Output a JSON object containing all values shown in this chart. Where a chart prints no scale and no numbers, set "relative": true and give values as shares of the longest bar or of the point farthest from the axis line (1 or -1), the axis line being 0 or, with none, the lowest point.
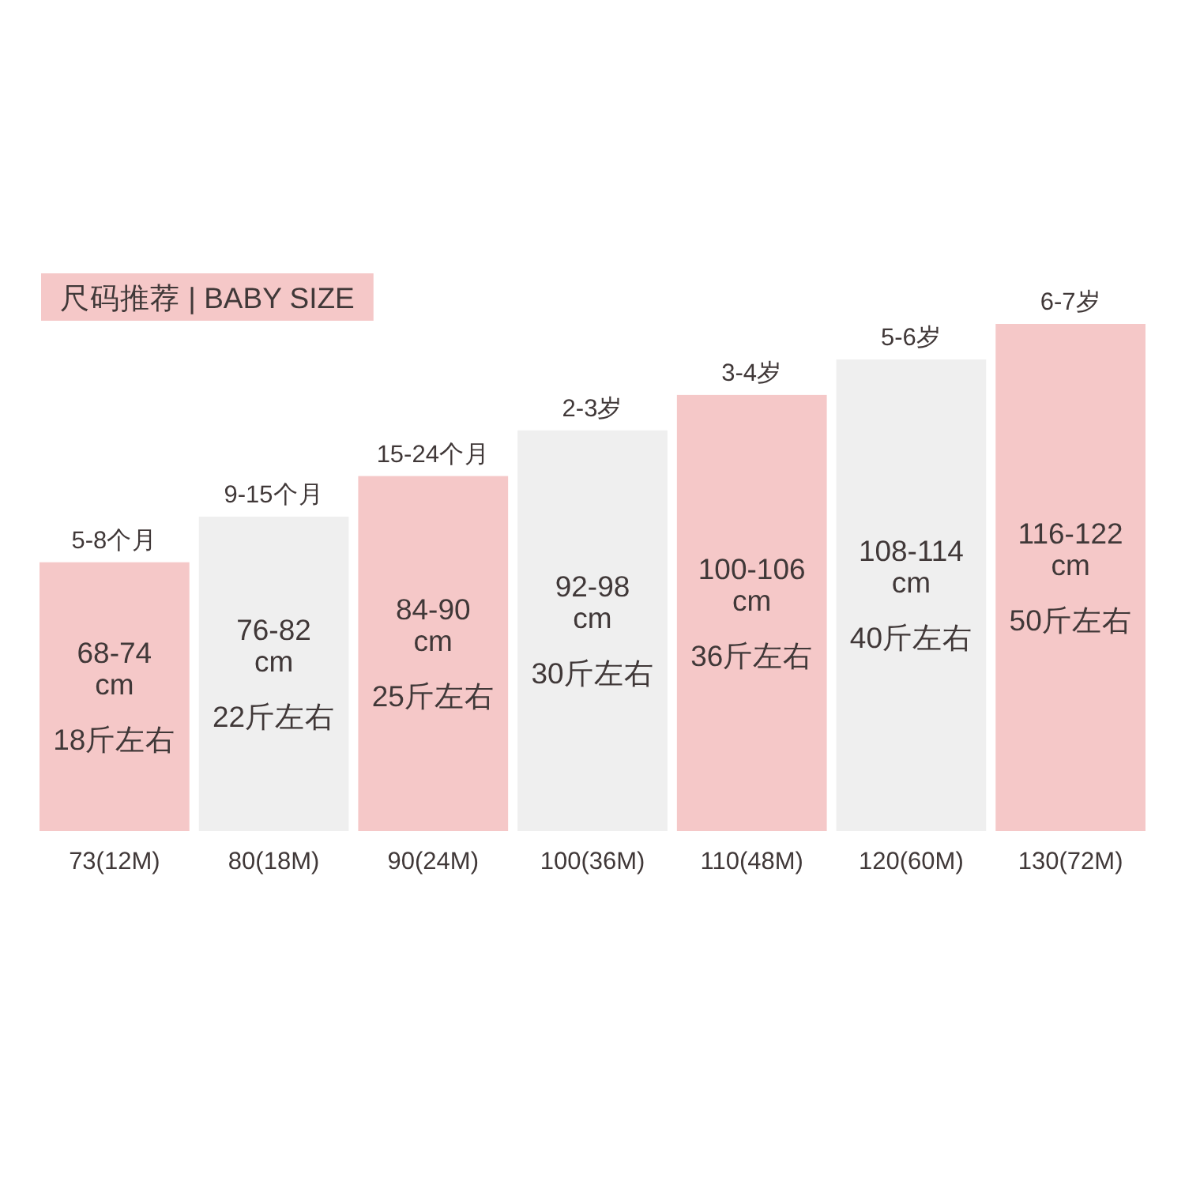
{
  "chart_data": {
    "type": "bar",
    "title": "尺码推荐 | BABY SIZE",
    "relative": true,
    "categories": [
      "73(12M)",
      "80(18M)",
      "90(24M)",
      "100(36M)",
      "110(48M)",
      "120(60M)",
      "130(72M)"
    ],
    "values": [
      0.53,
      0.62,
      0.7,
      0.79,
      0.86,
      0.93,
      1
    ],
    "colors": [
      "#f5c8c8",
      "#efefef",
      "#f5c8c8",
      "#efefef",
      "#f5c8c8",
      "#efefef",
      "#f5c8c8"
    ],
    "annotations": [
      {
        "text": "5-8个月",
        "x": "73(12M)",
        "y": 0.53
      },
      {
        "text": "9-15个月",
        "x": "80(18M)",
        "y": 0.62
      },
      {
        "text": "15-24个月",
        "x": "90(24M)",
        "y": 0.7
      },
      {
        "text": "2-3岁",
        "x": "100(36M)",
        "y": 0.79
      },
      {
        "text": "3-4岁",
        "x": "110(48M)",
        "y": 0.86
      },
      {
        "text": "5-6岁",
        "x": "120(60M)",
        "y": 0.93
      },
      {
        "text": "6-7岁",
        "x": "130(72M)",
        "y": 1
      },
      "68-74\ncm",
      "18斤左右",
      "76-82\ncm",
      "22斤左右",
      "84-90\ncm",
      "25斤左右",
      "92-98\ncm",
      "30斤左右",
      "100-106\ncm",
      "36斤左右",
      "108-114\ncm",
      "40斤左右",
      "116-122\ncm",
      "50斤左右"
    ]
  }
}
